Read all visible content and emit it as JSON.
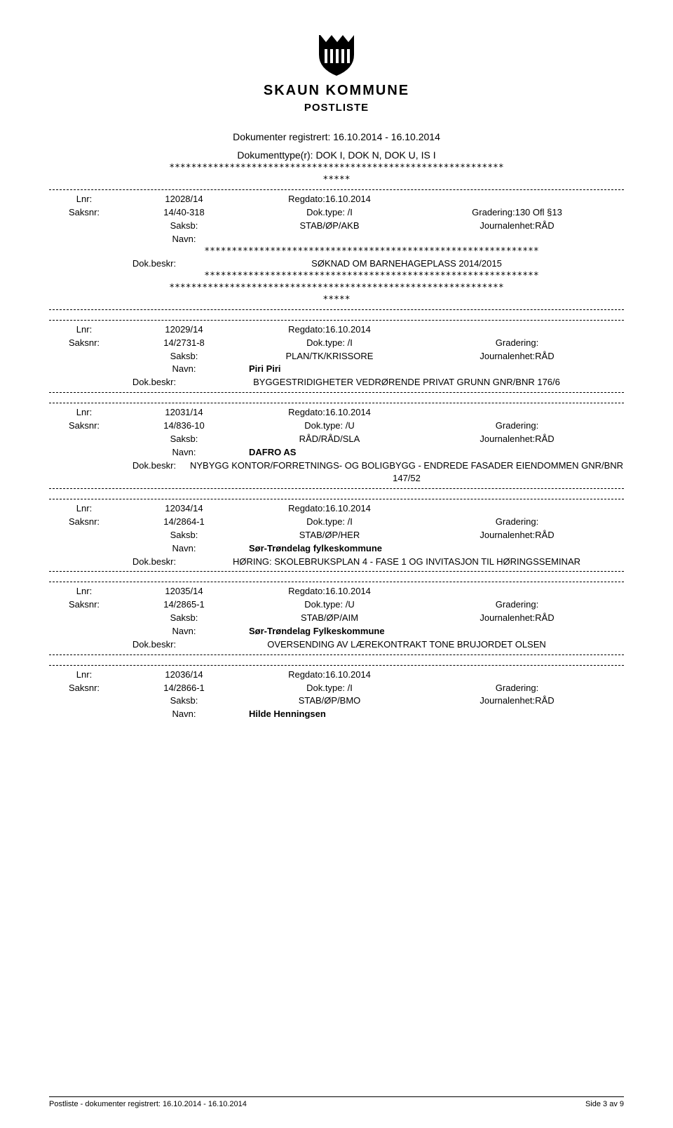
{
  "header": {
    "municipality": "SKAUN KOMMUNE",
    "postliste": "POSTLISTE",
    "registered_label": "Dokumenter registrert: 16.10.2014 - 16.10.2014",
    "doctype_label": "Dokumenttype(r): DOK I, DOK N, DOK U, IS I"
  },
  "labels": {
    "lnr": "Lnr:",
    "regdato": "Regdato:",
    "saksnr": "Saksnr:",
    "doktype": "Dok.type:",
    "gradering": "Gradering:",
    "saksb": "Saksb:",
    "journalenhet": "Journalenhet:",
    "navn": "Navn:",
    "dokbeskr": "Dok.beskr:"
  },
  "entries": [
    {
      "stars_before": true,
      "lnr": "12028/14",
      "regdato": "16.10.2014",
      "saksnr": "14/40-318",
      "doktype": "/I",
      "gradering": "130 Ofl §13",
      "saksb": "STAB/ØP/AKB",
      "journalenhet": "RÅD",
      "navn": "",
      "navn_stars": true,
      "beskr": "SØKNAD OM BARNEHAGEPLASS 2014/2015",
      "beskr_stars": true,
      "stars_after": true
    },
    {
      "lnr": "12029/14",
      "regdato": "16.10.2014",
      "saksnr": "14/2731-8",
      "doktype": "/I",
      "gradering": "",
      "saksb": "PLAN/TK/KRISSORE",
      "journalenhet": "RÅD",
      "navn": "Piri Piri",
      "beskr": "BYGGESTRIDIGHETER VEDRØRENDE PRIVAT GRUNN GNR/BNR 176/6"
    },
    {
      "lnr": "12031/14",
      "regdato": "16.10.2014",
      "saksnr": "14/836-10",
      "doktype": "/U",
      "gradering": "",
      "saksb": "RÅD/RÅD/SLA",
      "journalenhet": "RÅD",
      "navn": "DAFRO AS",
      "beskr": "NYBYGG KONTOR/FORRETNINGS- OG BOLIGBYGG - ENDREDE FASADER EIENDOMMEN GNR/BNR 147/52"
    },
    {
      "lnr": "12034/14",
      "regdato": "16.10.2014",
      "saksnr": "14/2864-1",
      "doktype": "/I",
      "gradering": "",
      "saksb": "STAB/ØP/HER",
      "journalenhet": "RÅD",
      "navn": "Sør-Trøndelag fylkeskommune",
      "beskr": "HØRING: SKOLEBRUKSPLAN 4 - FASE 1 OG INVITASJON TIL HØRINGSSEMINAR"
    },
    {
      "lnr": "12035/14",
      "regdato": "16.10.2014",
      "saksnr": "14/2865-1",
      "doktype": "/U",
      "gradering": "",
      "saksb": "STAB/ØP/AIM",
      "journalenhet": "RÅD",
      "navn": "Sør-Trøndelag Fylkeskommune",
      "beskr": "OVERSENDING AV LÆREKONTRAKT TONE BRUJORDET OLSEN"
    },
    {
      "lnr": "12036/14",
      "regdato": "16.10.2014",
      "saksnr": "14/2866-1",
      "doktype": "/I",
      "gradering": "",
      "saksb": "STAB/ØP/BMO",
      "journalenhet": "RÅD",
      "navn": "Hilde Henningsen",
      "no_bottom_divider": true
    }
  ],
  "stars": {
    "long": "*************************************************************",
    "short": "*****"
  },
  "footer": {
    "left": "Postliste - dokumenter registrert: 16.10.2014 - 16.10.2014",
    "right": "Side 3 av 9"
  },
  "colors": {
    "text": "#000000",
    "background": "#ffffff"
  }
}
